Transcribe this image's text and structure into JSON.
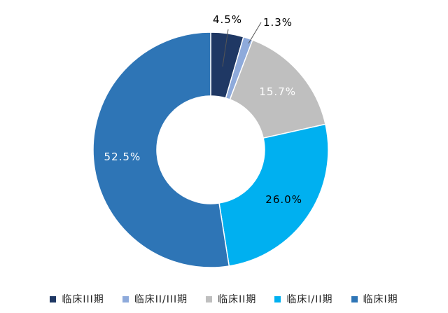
{
  "chart_data": {
    "type": "pie",
    "variant": "donut",
    "title": "",
    "legend_position": "bottom",
    "slices": [
      {
        "name": "临床III期",
        "value": 4.5,
        "label": "4.5%",
        "color": "#1f3864",
        "label_color": "#000000",
        "label_placement": "outside"
      },
      {
        "name": "临床II/III期",
        "value": 1.3,
        "label": "1.3%",
        "color": "#8eaadb",
        "label_color": "#000000",
        "label_placement": "outside"
      },
      {
        "name": "临床II期",
        "value": 15.7,
        "label": "15.7%",
        "color": "#bfbfbf",
        "label_color": "#ffffff",
        "label_placement": "inside"
      },
      {
        "name": "临床I/II期",
        "value": 26.0,
        "label": "26.0%",
        "color": "#00b0f0",
        "label_color": "#000000",
        "label_placement": "inside"
      },
      {
        "name": "临床I期",
        "value": 52.5,
        "label": "52.5%",
        "color": "#2e75b6",
        "label_color": "#ffffff",
        "label_placement": "inside"
      }
    ]
  },
  "legend": {
    "items": [
      {
        "label": "临床III期",
        "color": "#1f3864"
      },
      {
        "label": "临床II/III期",
        "color": "#8eaadb"
      },
      {
        "label": "临床II期",
        "color": "#bfbfbf"
      },
      {
        "label": "临床I/II期",
        "color": "#00b0f0"
      },
      {
        "label": "临床I期",
        "color": "#2e75b6"
      }
    ]
  }
}
